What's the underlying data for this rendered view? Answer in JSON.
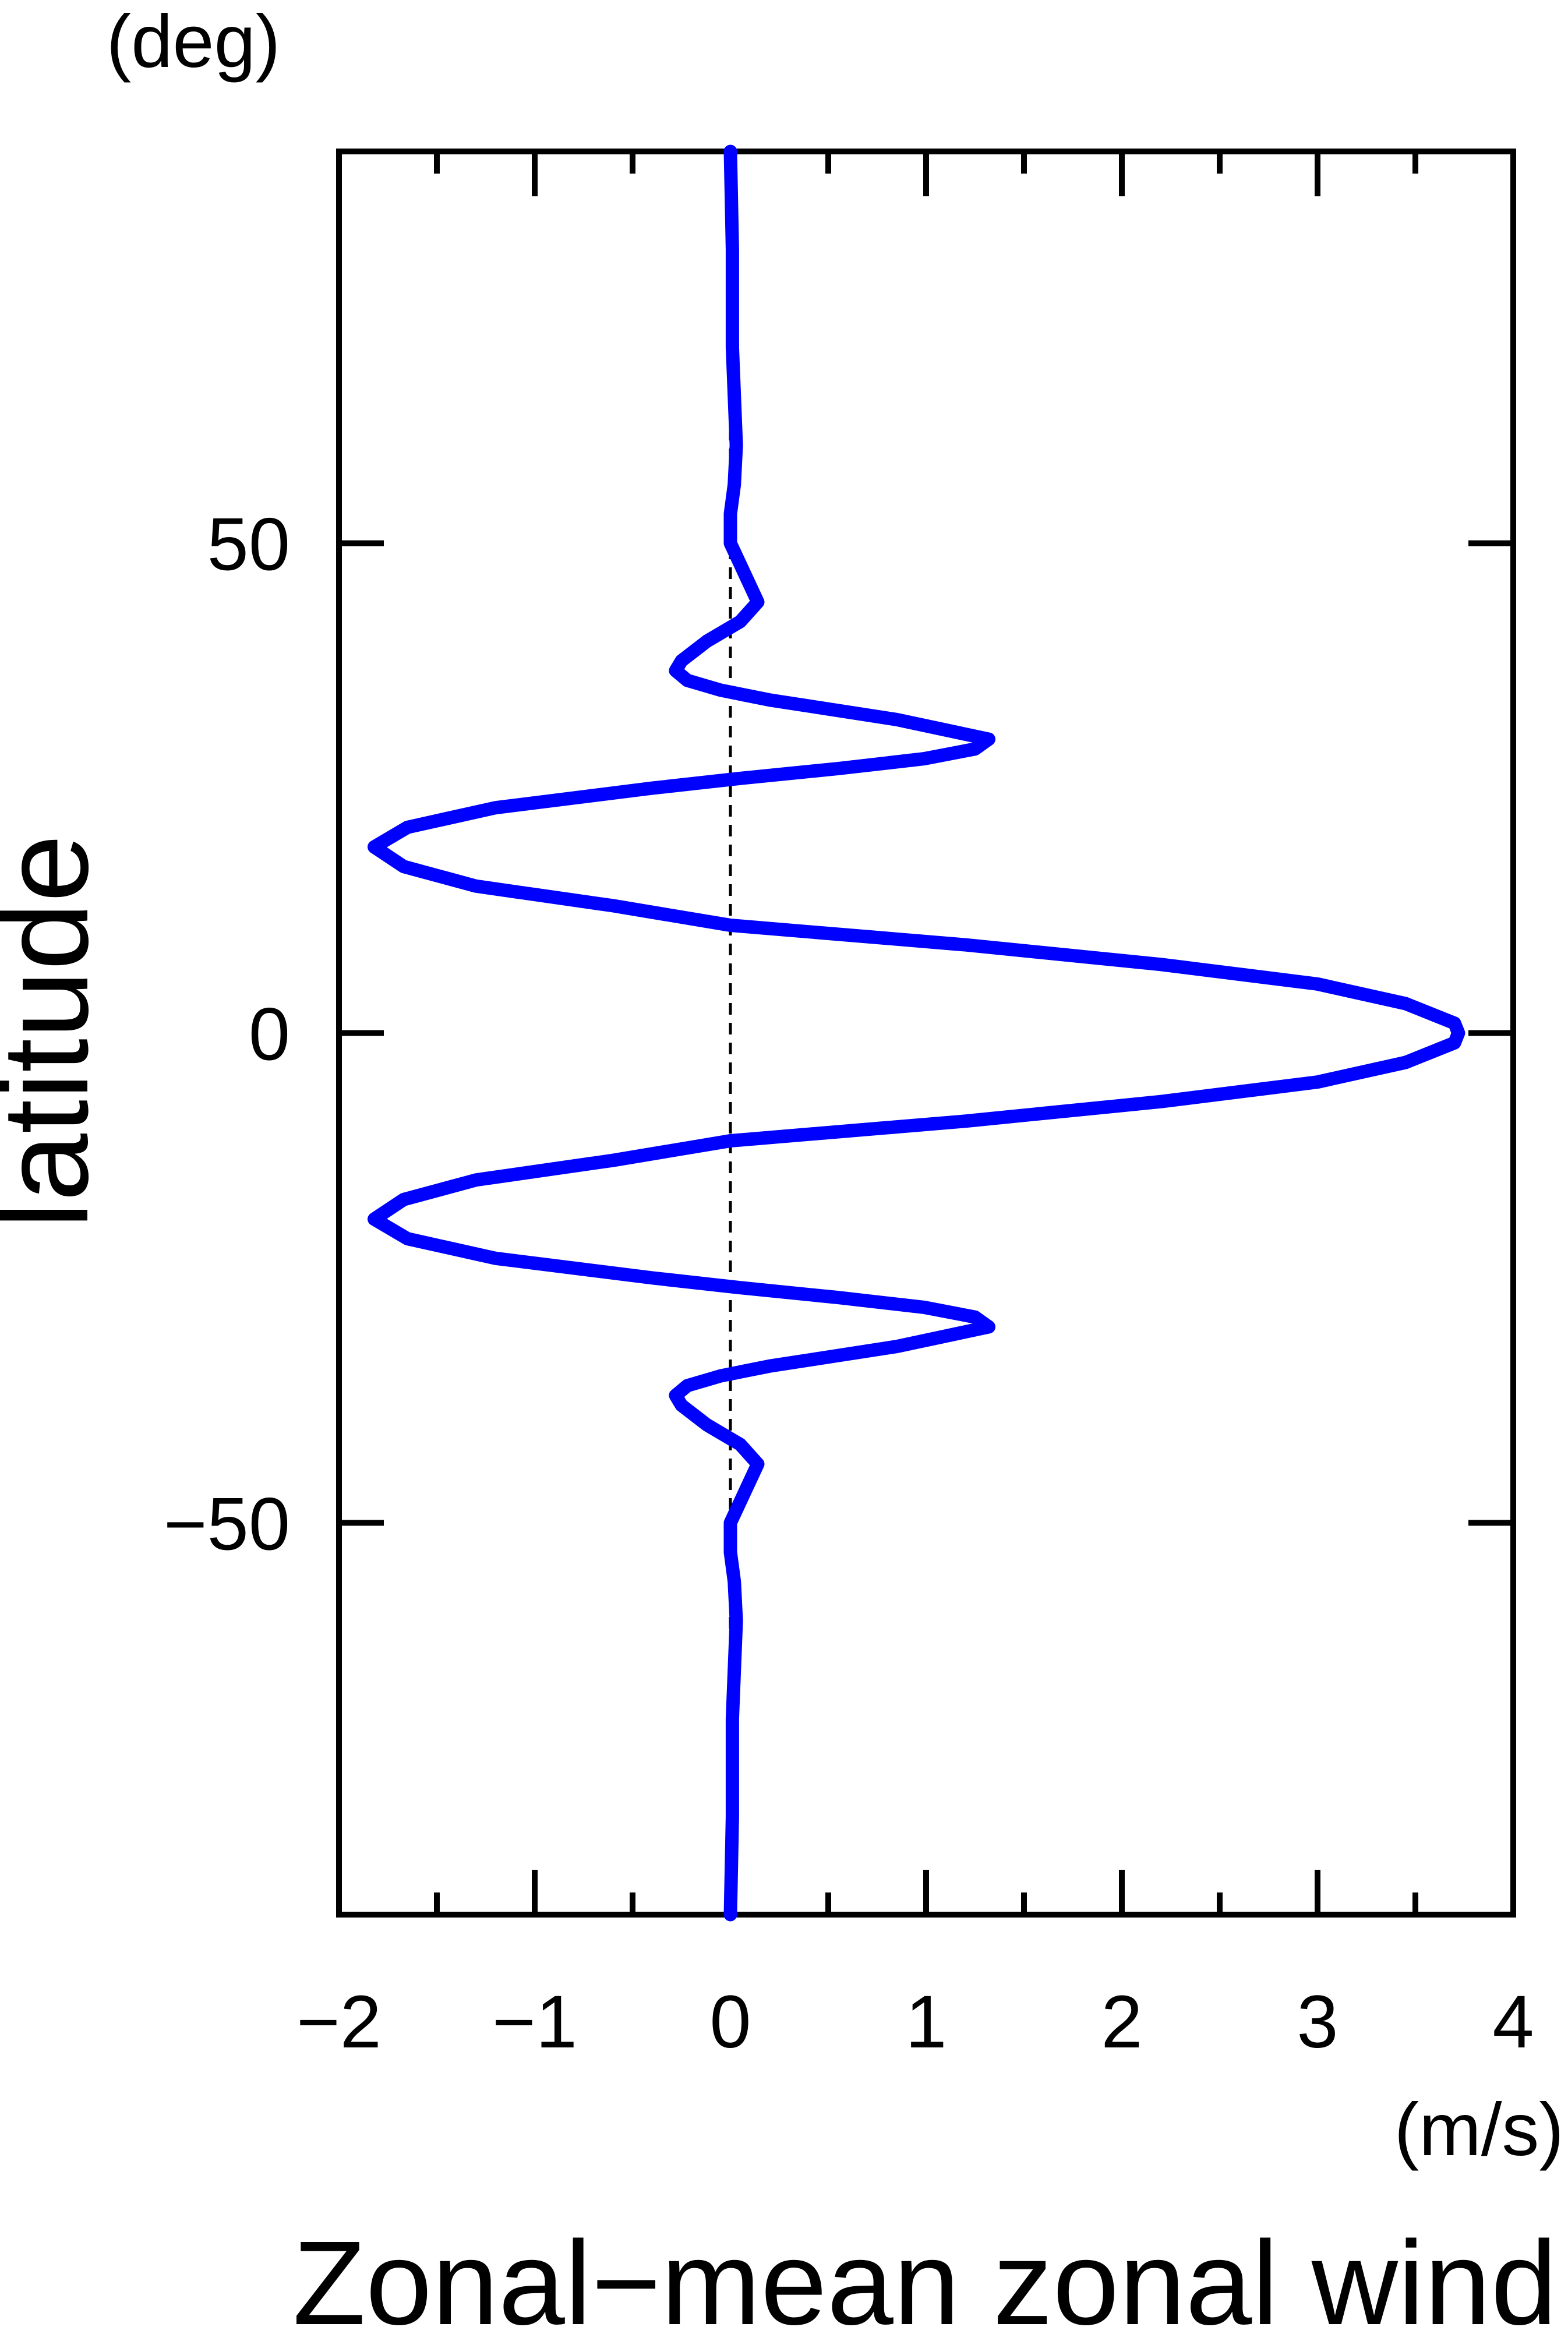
{
  "chart_data": {
    "type": "line",
    "x_label": "Zonal−mean zonal wind",
    "x_unit": "(m/s)",
    "y_label": "latitude",
    "y_unit": "(deg)",
    "x": [
      90,
      80,
      70,
      60,
      56,
      53,
      50,
      47,
      44,
      42,
      40,
      38,
      37,
      36,
      35,
      34,
      32,
      30,
      29,
      28,
      27,
      26,
      25,
      23,
      21,
      19,
      17,
      15,
      13,
      11,
      9,
      7,
      5,
      3,
      1,
      0,
      -1,
      -3,
      -5,
      -7,
      -9,
      -11,
      -13,
      -15,
      -17,
      -19,
      -21,
      -23,
      -25,
      -26,
      -27,
      -28,
      -29,
      -30,
      -32,
      -34,
      -35,
      -36,
      -37,
      -38,
      -40,
      -42,
      -44,
      -47,
      -50,
      -53,
      -56,
      -60,
      -70,
      -80,
      -90
    ],
    "series": [
      {
        "color": "#0000ff",
        "values": [
          0,
          0.01,
          0.01,
          0.03,
          0.02,
          0.0,
          0.0,
          0.07,
          0.14,
          0.05,
          -0.12,
          -0.25,
          -0.28,
          -0.22,
          -0.05,
          0.2,
          0.85,
          1.32,
          1.25,
          0.99,
          0.55,
          0.05,
          -0.4,
          -1.2,
          -1.65,
          -1.82,
          -1.67,
          -1.3,
          -0.6,
          0,
          1.2,
          2.2,
          3.0,
          3.45,
          3.7,
          3.72,
          3.7,
          3.45,
          3.0,
          2.2,
          1.2,
          0,
          -0.6,
          -1.3,
          -1.67,
          -1.82,
          -1.65,
          -1.2,
          -0.4,
          0.05,
          0.55,
          0.99,
          1.25,
          1.32,
          0.85,
          0.2,
          -0.05,
          -0.22,
          -0.28,
          -0.25,
          -0.12,
          0.05,
          0.14,
          0.07,
          0.0,
          0.0,
          0.02,
          0.03,
          0.01,
          0.01,
          0
        ]
      }
    ],
    "xlim": [
      -2,
      4
    ],
    "xticks": [
      {
        "value": -2,
        "label": "−2"
      },
      {
        "value": -1,
        "label": "−1"
      },
      0,
      1,
      2,
      3,
      4
    ],
    "xminorticks": [
      -1.5,
      -0.5,
      0.5,
      1.5,
      2.5,
      3.5
    ],
    "ylim": [
      -90,
      90
    ],
    "yticks": [
      {
        "value": -50,
        "label": "−50"
      },
      0,
      50
    ],
    "reference_line": 0
  }
}
